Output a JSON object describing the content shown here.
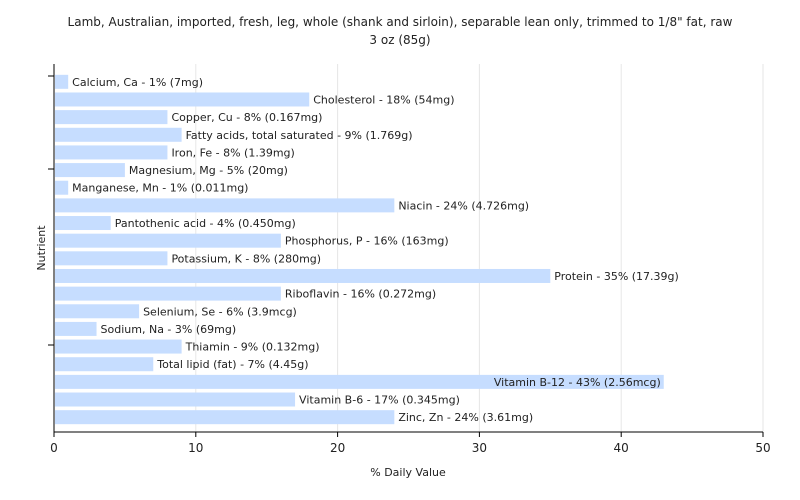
{
  "chart_data": {
    "type": "bar",
    "orientation": "horizontal",
    "title_lines": [
      "Lamb, Australian, imported, fresh, leg, whole (shank and sirloin), separable lean only, trimmed to 1/8\" fat, raw",
      "3 oz (85g)"
    ],
    "xlabel": "% Daily Value",
    "ylabel": "Nutrient",
    "xlim": [
      0,
      50
    ],
    "xticks": [
      0,
      10,
      20,
      30,
      40,
      50
    ],
    "grid": true,
    "legend": "none",
    "bar_color": "#c6ddff",
    "categories": [
      "Calcium, Ca",
      "Cholesterol",
      "Copper, Cu",
      "Fatty acids, total saturated",
      "Iron, Fe",
      "Magnesium, Mg",
      "Manganese, Mn",
      "Niacin",
      "Pantothenic acid",
      "Phosphorus, P",
      "Potassium, K",
      "Protein",
      "Riboflavin",
      "Selenium, Se",
      "Sodium, Na",
      "Thiamin",
      "Total lipid (fat)",
      "Vitamin B-12",
      "Vitamin B-6",
      "Zinc, Zn"
    ],
    "values": [
      1,
      18,
      8,
      9,
      8,
      5,
      1,
      24,
      4,
      16,
      8,
      35,
      16,
      6,
      3,
      9,
      7,
      43,
      17,
      24
    ],
    "labels": [
      "Calcium, Ca - 1% (7mg)",
      "Cholesterol - 18% (54mg)",
      "Copper, Cu - 8% (0.167mg)",
      "Fatty acids, total saturated - 9% (1.769g)",
      "Iron, Fe - 8% (1.39mg)",
      "Magnesium, Mg - 5% (20mg)",
      "Manganese, Mn - 1% (0.011mg)",
      "Niacin - 24% (4.726mg)",
      "Pantothenic acid - 4% (0.450mg)",
      "Phosphorus, P - 16% (163mg)",
      "Potassium, K - 8% (280mg)",
      "Protein - 35% (17.39g)",
      "Riboflavin - 16% (0.272mg)",
      "Selenium, Se - 6% (3.9mcg)",
      "Sodium, Na - 3% (69mg)",
      "Thiamin - 9% (0.132mg)",
      "Total lipid (fat) - 7% (4.45g)",
      "Vitamin B-12 - 43% (2.56mcg)",
      "Vitamin B-6 - 17% (0.345mg)",
      "Zinc, Zn - 24% (3.61mg)"
    ]
  }
}
